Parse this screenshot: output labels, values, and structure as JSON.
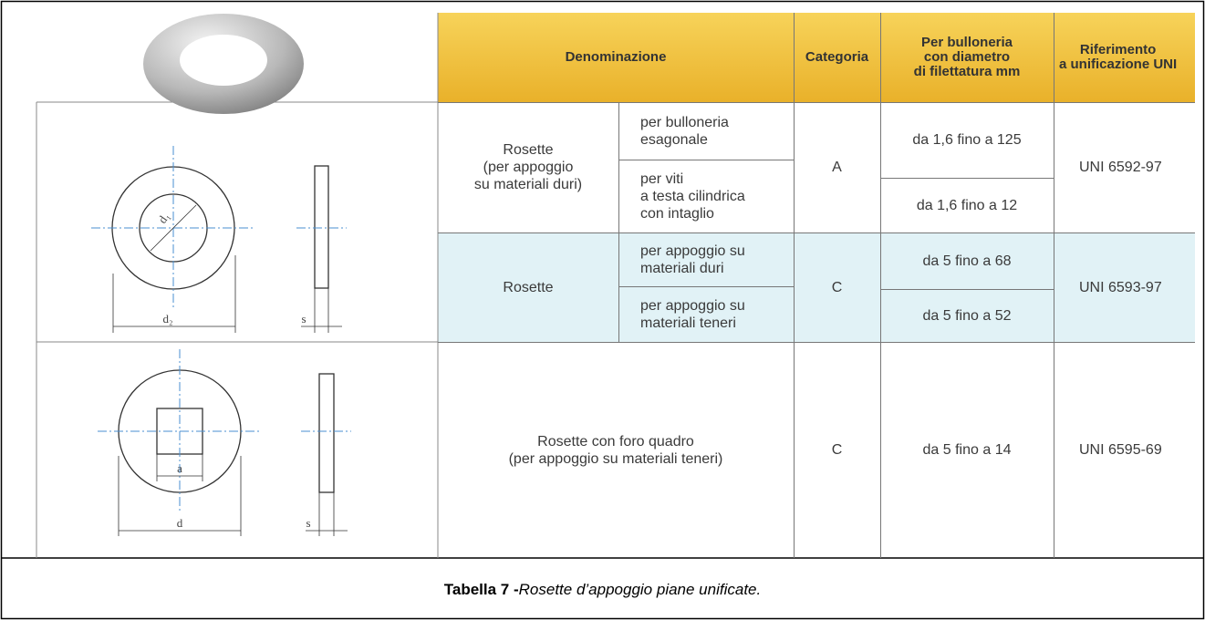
{
  "table": {
    "headers": [
      "Denominazione",
      "Categoria",
      "Per bulloneria\ncon diametro\ndi filettatura mm",
      "Riferimento\na unificazione UNI"
    ],
    "groups": [
      {
        "name": "Rosette\n(per appoggio\nsu materiali duri)",
        "category": "A",
        "reference": "UNI 6592-97",
        "rows": [
          {
            "use": "per bulloneria\nesagonale",
            "range": "da 1,6 fino a 125"
          },
          {
            "use": "per viti\na testa cilindrica\ncon intaglio",
            "range": "da 1,6 fino a 12"
          }
        ]
      },
      {
        "name": "Rosette",
        "category": "C",
        "reference": "UNI 6593-97",
        "rows": [
          {
            "use": "per appoggio su\nmateriali duri",
            "range": "da 5 fino a 68"
          },
          {
            "use": "per appoggio su\nmateriali teneri",
            "range": "da 5 fino a 52"
          }
        ]
      },
      {
        "name": "Rosette con foro quadro\n(per appoggio su materiali teneri)",
        "category": "C",
        "reference": "UNI 6595-69",
        "range": "da 5 fino a 14"
      }
    ]
  },
  "drawing_labels": [
    "d₁",
    "d₂",
    "s",
    "a",
    "d",
    "s"
  ],
  "caption": {
    "label": "Tabella 7 -",
    "text": "Rosette d’appoggio piane unificate."
  }
}
